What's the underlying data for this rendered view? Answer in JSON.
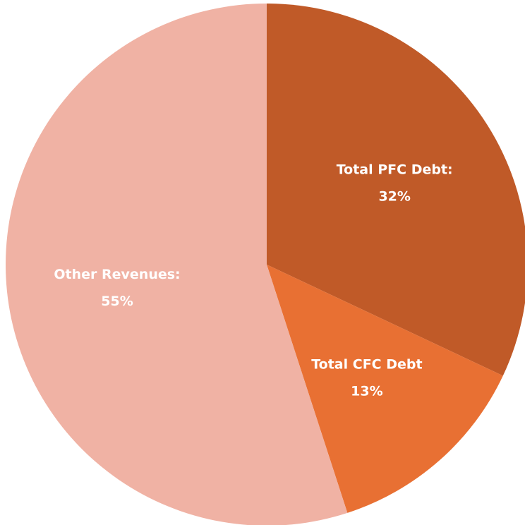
{
  "chart_data": {
    "type": "pie",
    "categories": [
      "Total PFC Debt:",
      "Total CFC Debt",
      "Other Revenues:"
    ],
    "values": [
      32,
      13,
      55
    ],
    "value_labels": [
      "32%",
      "13%",
      "55%"
    ],
    "colors": [
      "#c05a28",
      "#e87033",
      "#f0b2a4"
    ]
  }
}
